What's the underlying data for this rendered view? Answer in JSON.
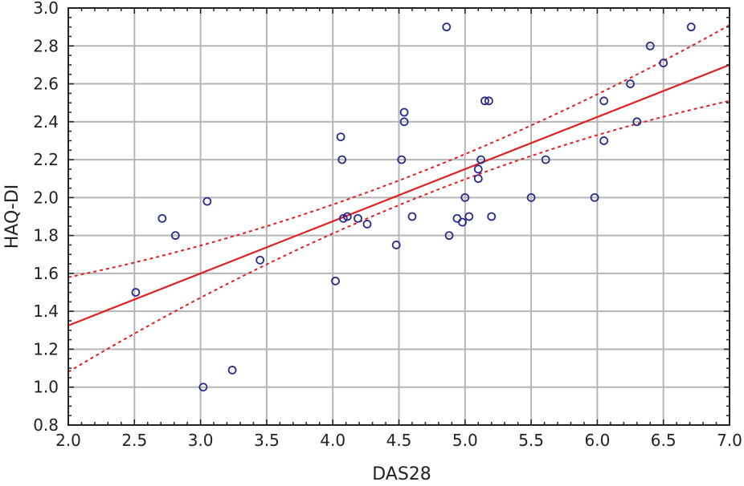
{
  "chart_data": {
    "type": "scatter",
    "title": "",
    "xlabel": "DAS28",
    "ylabel": "HAQ-DI",
    "xlim": [
      2.0,
      7.0
    ],
    "ylim": [
      0.8,
      3.0
    ],
    "x_ticks": [
      2.0,
      2.5,
      3.0,
      3.5,
      4.0,
      4.5,
      5.0,
      5.5,
      6.0,
      6.5,
      7.0
    ],
    "y_ticks": [
      0.8,
      1.0,
      1.2,
      1.4,
      1.6,
      1.8,
      2.0,
      2.2,
      2.4,
      2.6,
      2.8,
      3.0
    ],
    "x_tick_labels": [
      "2.0",
      "2.5",
      "3.0",
      "3.5",
      "4.0",
      "4.5",
      "5.0",
      "5.5",
      "6.0",
      "6.5",
      "7.0"
    ],
    "y_tick_labels": [
      "0.8",
      "1.0",
      "1.2",
      "1.4",
      "1.6",
      "1.8",
      "2.0",
      "2.2",
      "2.4",
      "2.6",
      "2.8",
      "3.0"
    ],
    "grid": true,
    "series": [
      {
        "name": "observations",
        "marker": "open-circle",
        "color": "#2b2b8c",
        "points": [
          [
            2.51,
            1.5
          ],
          [
            2.71,
            1.89
          ],
          [
            2.81,
            1.8
          ],
          [
            3.02,
            1.0
          ],
          [
            3.05,
            1.98
          ],
          [
            3.24,
            1.09
          ],
          [
            3.45,
            1.67
          ],
          [
            4.02,
            1.56
          ],
          [
            4.06,
            2.32
          ],
          [
            4.07,
            2.2
          ],
          [
            4.08,
            1.89
          ],
          [
            4.11,
            1.9
          ],
          [
            4.19,
            1.89
          ],
          [
            4.26,
            1.86
          ],
          [
            4.48,
            1.75
          ],
          [
            4.52,
            2.2
          ],
          [
            4.54,
            2.45
          ],
          [
            4.54,
            2.4
          ],
          [
            4.6,
            1.9
          ],
          [
            4.86,
            2.9
          ],
          [
            4.88,
            1.8
          ],
          [
            4.94,
            1.89
          ],
          [
            4.98,
            1.87
          ],
          [
            5.0,
            2.0
          ],
          [
            5.03,
            1.9
          ],
          [
            5.1,
            2.15
          ],
          [
            5.1,
            2.1
          ],
          [
            5.12,
            2.2
          ],
          [
            5.15,
            2.51
          ],
          [
            5.18,
            2.51
          ],
          [
            5.2,
            1.9
          ],
          [
            5.5,
            2.0
          ],
          [
            5.61,
            2.2
          ],
          [
            5.98,
            2.0
          ],
          [
            6.05,
            2.51
          ],
          [
            6.05,
            2.3
          ],
          [
            6.25,
            2.6
          ],
          [
            6.3,
            2.4
          ],
          [
            6.4,
            2.8
          ],
          [
            6.5,
            2.71
          ],
          [
            6.71,
            2.9
          ]
        ]
      },
      {
        "name": "regression line",
        "color": "#e02020",
        "style": "solid",
        "intercept": 0.775,
        "slope": 0.275
      },
      {
        "name": "upper confidence band",
        "color": "#e02020",
        "style": "dotted",
        "points": [
          [
            2.0,
            1.58
          ],
          [
            4.5,
            2.09
          ],
          [
            7.0,
            2.91
          ]
        ]
      },
      {
        "name": "lower confidence band",
        "color": "#e02020",
        "style": "dotted",
        "points": [
          [
            2.0,
            1.08
          ],
          [
            4.5,
            1.96
          ],
          [
            7.0,
            2.51
          ]
        ]
      }
    ]
  }
}
